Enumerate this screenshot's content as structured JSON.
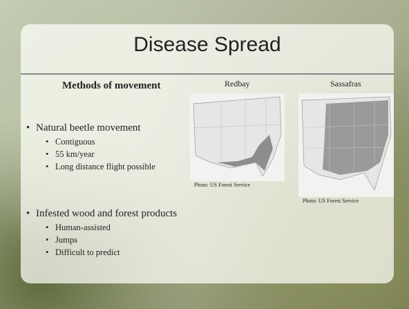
{
  "title": "Disease Spread",
  "left": {
    "heading": "Methods of movement",
    "bullets": [
      {
        "text": "Natural beetle movement",
        "sub": [
          "Contiguous",
          "55 km/year",
          "Long distance flight possible"
        ]
      },
      {
        "text": "Infested wood and forest products",
        "sub": [
          "Human-assisted",
          "Jumps",
          "Difficult to predict"
        ]
      }
    ]
  },
  "maps": [
    {
      "label": "Redbay",
      "credit": "Photo: US Forest Service"
    },
    {
      "label": "Sassafras",
      "credit": "Photo: US Forest Service"
    }
  ]
}
